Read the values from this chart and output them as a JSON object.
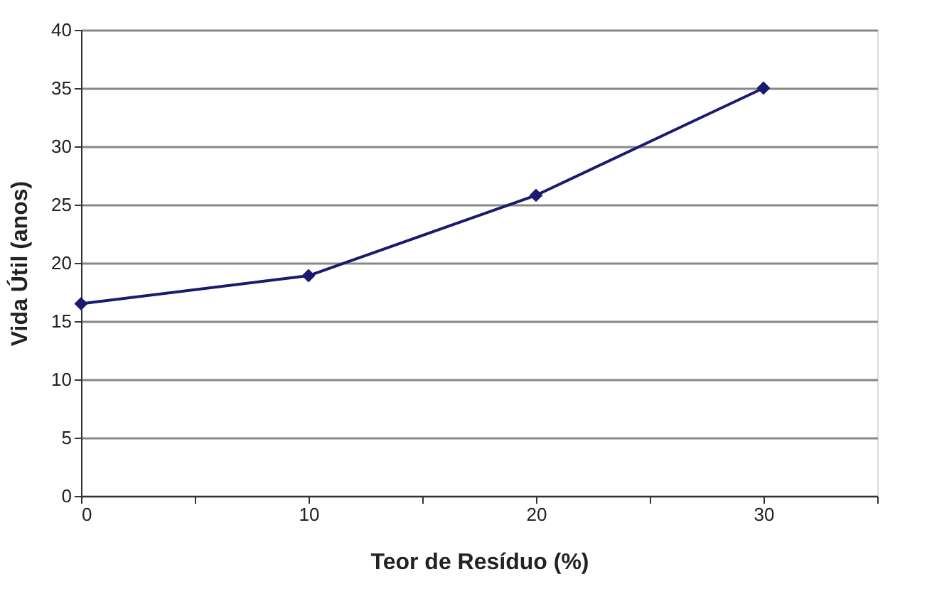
{
  "chart_data": {
    "type": "line",
    "xlabel": "Teor de Resíduo (%)",
    "ylabel": "Vida Útil (anos)",
    "x": [
      0,
      10,
      20,
      30
    ],
    "series": [
      {
        "color": "#1a1a6e",
        "values": [
          16.5,
          18.9,
          25.8,
          35
        ]
      }
    ],
    "xlim": [
      0,
      35
    ],
    "xticks": [
      0,
      {
        "value": 5,
        "label": null
      },
      10,
      {
        "value": 15,
        "label": null
      },
      20,
      {
        "value": 25,
        "label": null
      },
      30,
      {
        "value": 35,
        "label": null
      }
    ],
    "ylim": [
      0,
      40
    ],
    "yticks": [
      0,
      5,
      10,
      15,
      20,
      25,
      30,
      35,
      40
    ],
    "grid": "y",
    "marker": "diamond",
    "line_style": "solid"
  }
}
